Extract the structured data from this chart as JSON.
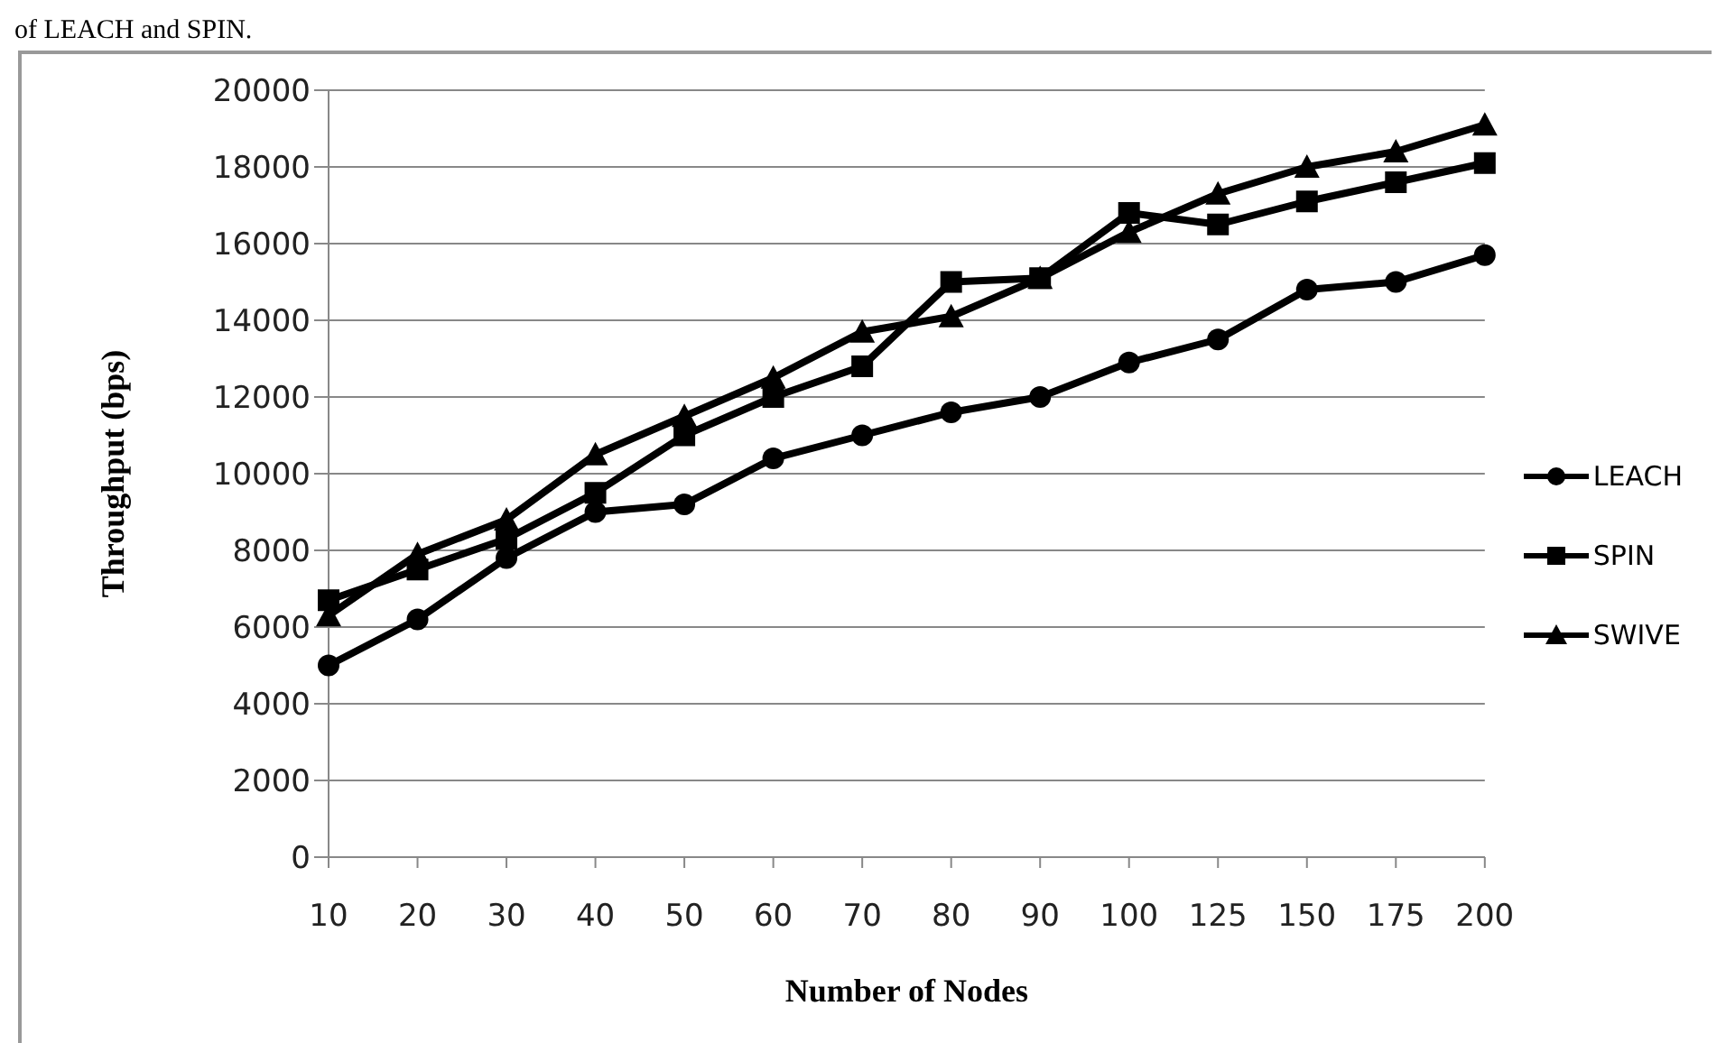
{
  "chart_data": {
    "type": "line",
    "annotations": [
      "of LEACH and SPIN."
    ],
    "xlabel": "Number of Nodes",
    "ylabel": "Throughput (bps)",
    "categories": [
      "10",
      "20",
      "30",
      "40",
      "50",
      "60",
      "70",
      "80",
      "90",
      "100",
      "125",
      "150",
      "175",
      "200"
    ],
    "series": [
      {
        "name": "LEACH",
        "color": "#000000",
        "marker": "circle",
        "values": [
          5000,
          6200,
          7800,
          9000,
          9200,
          10400,
          11000,
          11600,
          12000,
          12900,
          13500,
          14800,
          15000,
          15700
        ]
      },
      {
        "name": "SPIN",
        "color": "#000000",
        "marker": "square",
        "values": [
          6700,
          7500,
          8300,
          9500,
          11000,
          12000,
          12800,
          15000,
          15100,
          16800,
          16500,
          17100,
          17600,
          18100
        ]
      },
      {
        "name": "SWIVE",
        "color": "#000000",
        "marker": "triangle",
        "values": [
          6300,
          7900,
          8800,
          10500,
          11500,
          12500,
          13700,
          14100,
          15100,
          16300,
          17300,
          18000,
          18400,
          19100
        ]
      }
    ],
    "ylim": [
      0,
      20000
    ],
    "yticks": [
      0,
      2000,
      4000,
      6000,
      8000,
      10000,
      12000,
      14000,
      16000,
      18000,
      20000
    ],
    "grid": "y",
    "legend": "right",
    "line_style": "solid"
  }
}
